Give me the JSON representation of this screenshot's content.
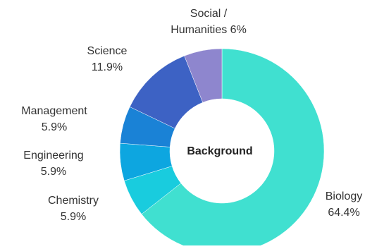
{
  "chart_data": {
    "type": "pie",
    "donut": true,
    "center_label": "Background",
    "slices": [
      {
        "label": "Biology",
        "value": 64.4,
        "display": "64.4%",
        "color": "#40E0D0"
      },
      {
        "label": "Chemistry",
        "value": 5.9,
        "display": "5.9%",
        "color": "#19CCDE"
      },
      {
        "label": "Engineering",
        "value": 5.9,
        "display": "5.9%",
        "color": "#0DA6E0"
      },
      {
        "label": "Management",
        "value": 5.9,
        "display": "5.9%",
        "color": "#1A82D6"
      },
      {
        "label": "Science",
        "value": 11.9,
        "display": "11.9%",
        "color": "#3D62C4"
      },
      {
        "label": "Social / Humanities",
        "value": 6,
        "display": "6%",
        "color": "#8E86CE"
      }
    ]
  }
}
